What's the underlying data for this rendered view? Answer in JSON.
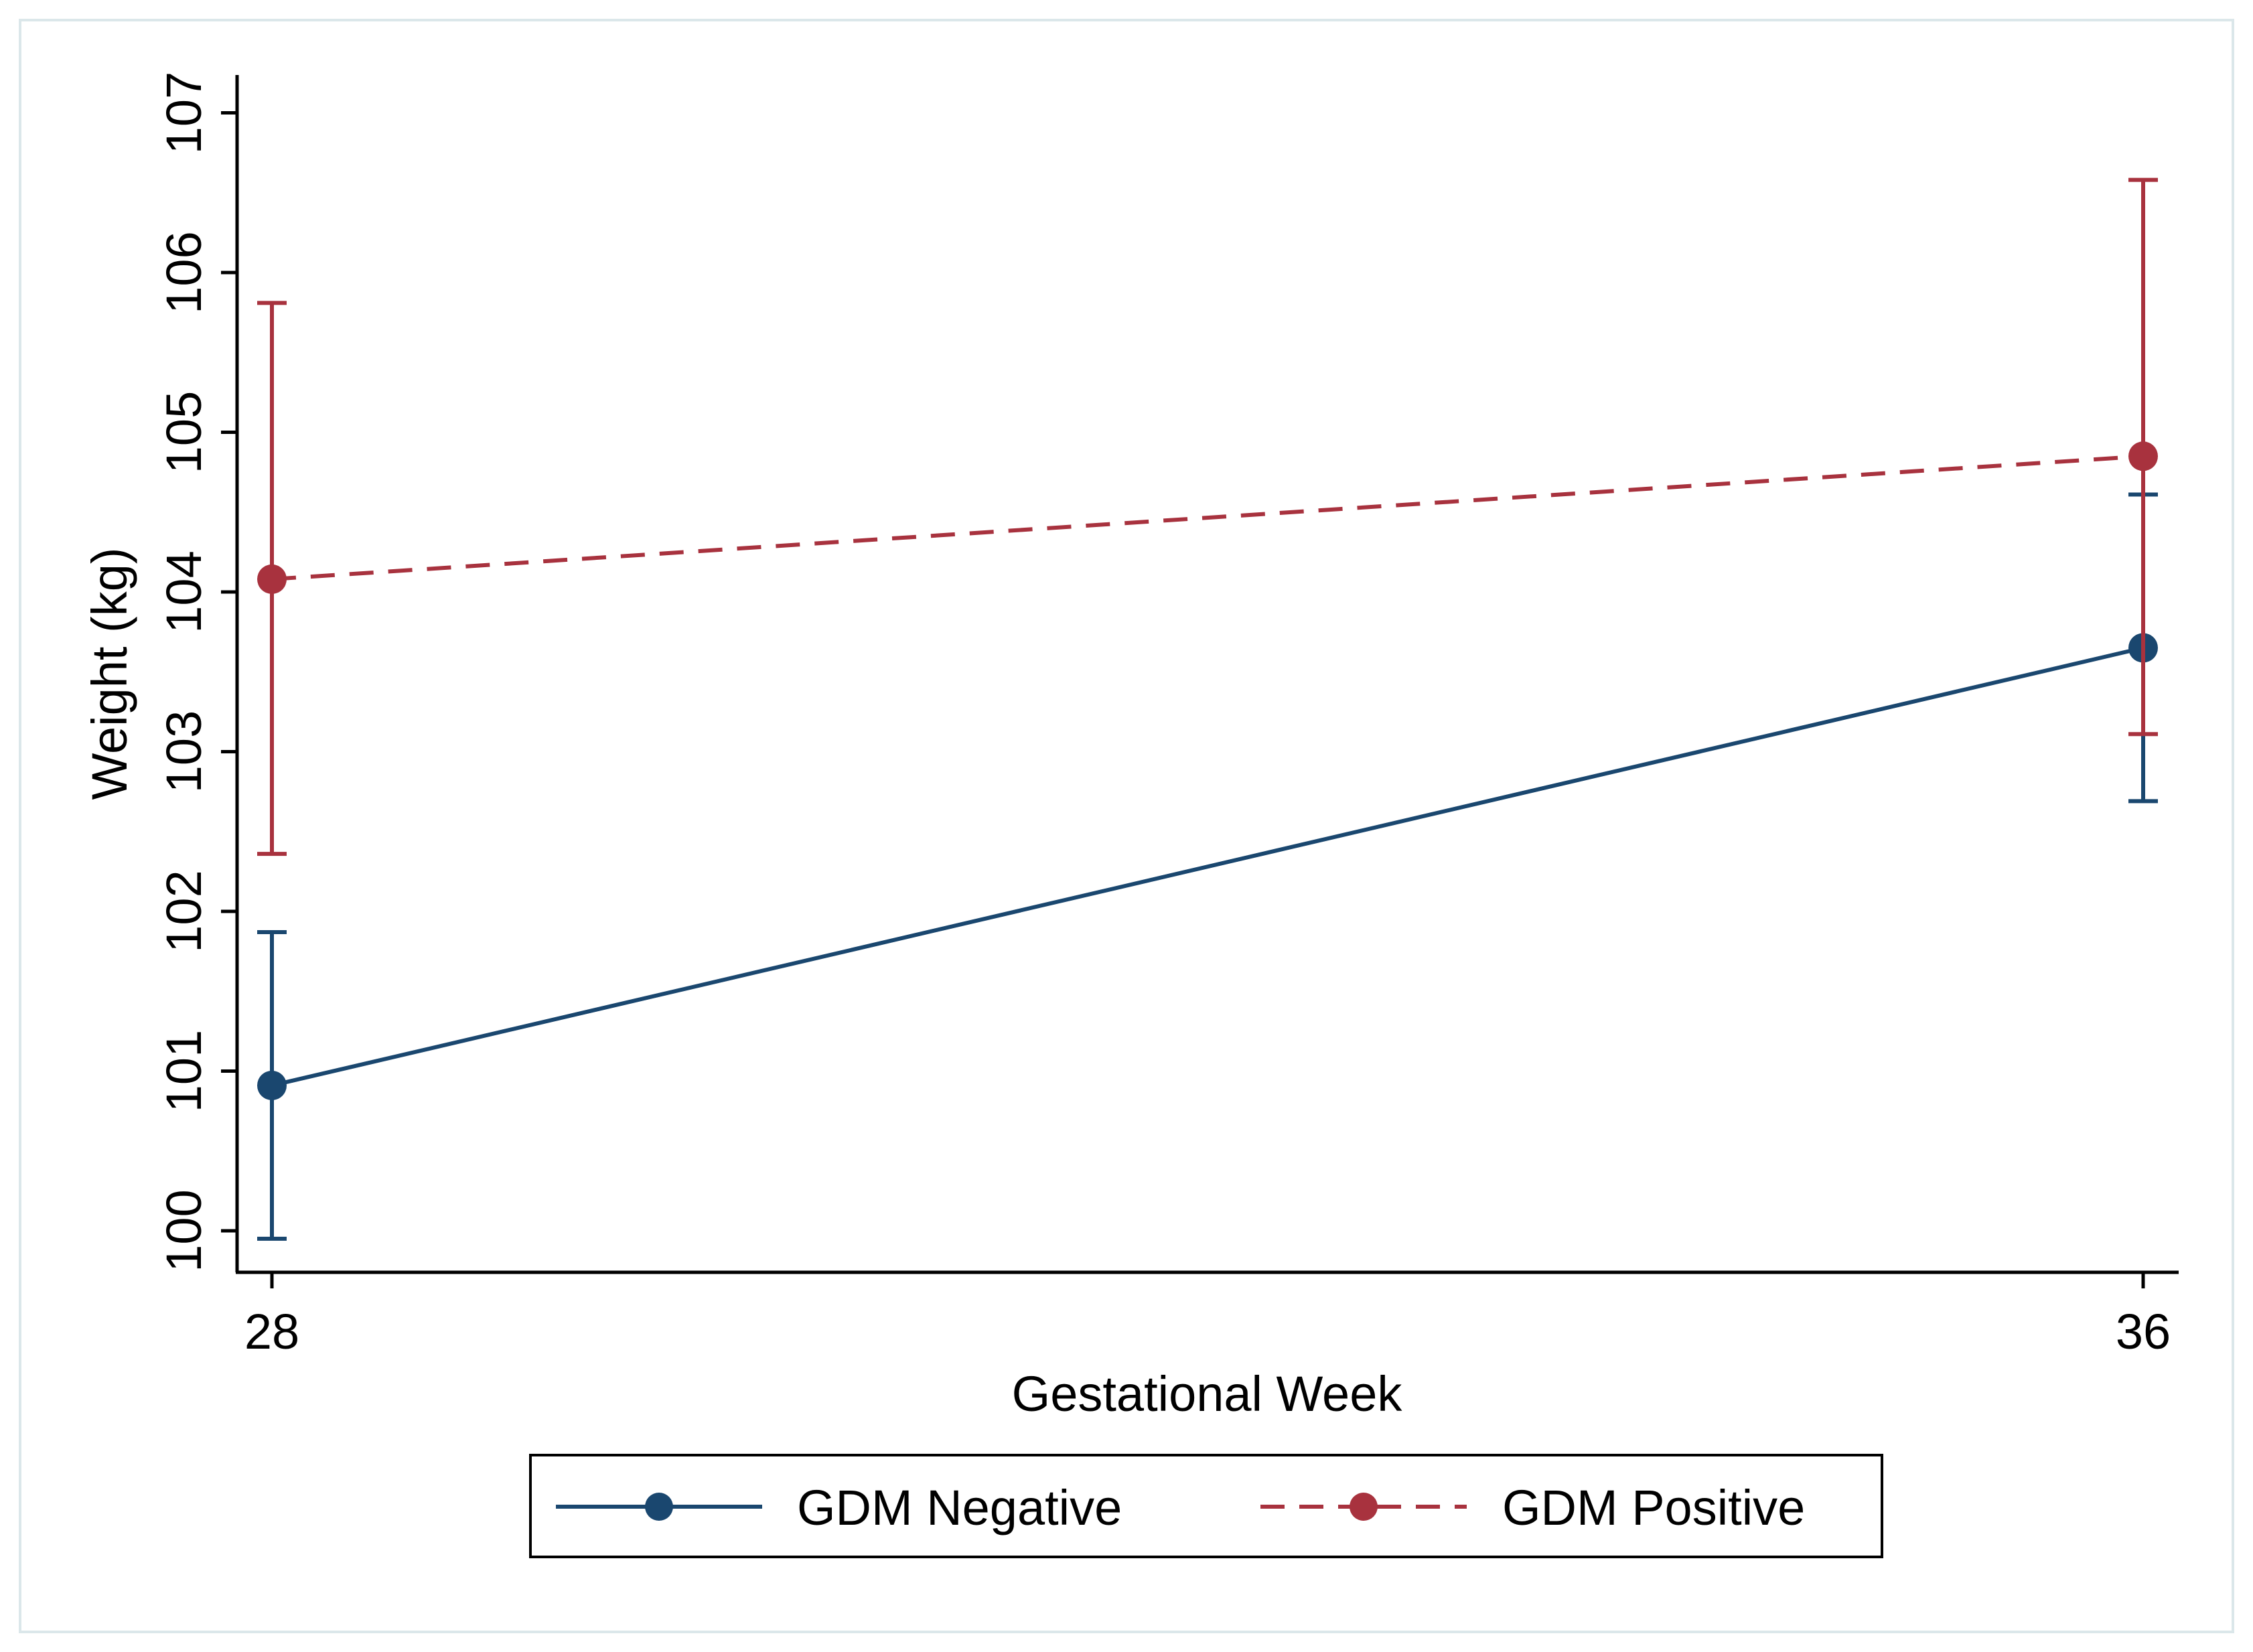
{
  "chart_data": {
    "type": "line",
    "title": "",
    "xlabel": "Gestational Week",
    "ylabel": "Weight (kg)",
    "x": [
      28,
      36
    ],
    "x_tick_labels": [
      "28",
      "36"
    ],
    "ylim": [
      99.75,
      107.25
    ],
    "y_ticks": [
      100,
      101,
      102,
      103,
      104,
      105,
      106,
      107
    ],
    "y_tick_labels": [
      "100",
      "101",
      "102",
      "103",
      "104",
      "105",
      "106",
      "107"
    ],
    "grid": false,
    "legend_position": "bottom",
    "series": [
      {
        "name": "GDM Negative",
        "values": [
          100.91,
          103.65
        ],
        "ci_lower": [
          99.95,
          102.69
        ],
        "ci_upper": [
          101.87,
          104.61
        ],
        "color": "#1a476f",
        "line_style": "solid"
      },
      {
        "name": "GDM Positive",
        "values": [
          104.08,
          104.85
        ],
        "ci_lower": [
          102.36,
          103.11
        ],
        "ci_upper": [
          105.81,
          106.58
        ],
        "color": "#a8323e",
        "line_style": "dashed"
      }
    ]
  }
}
